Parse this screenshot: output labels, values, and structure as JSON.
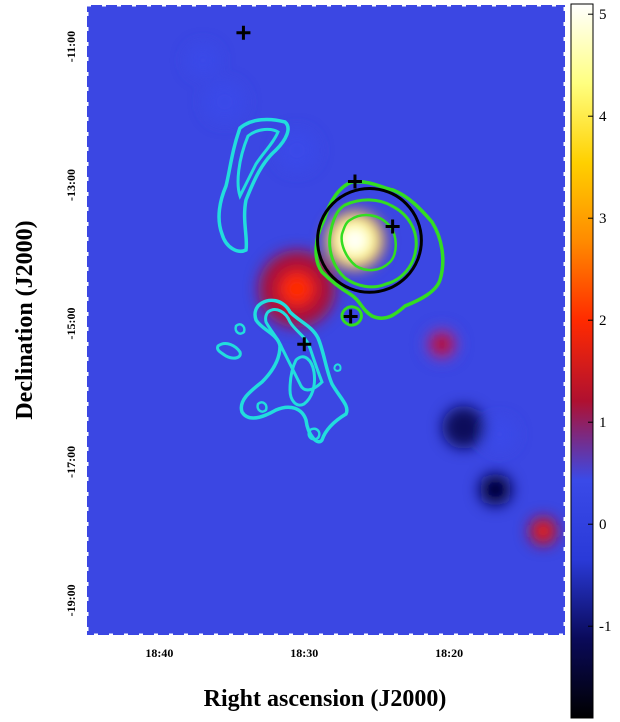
{
  "chart_data": {
    "type": "heatmap",
    "title": "",
    "xlabel": "Right ascension (J2000)",
    "ylabel": "Declination (J2000)",
    "x_ticks": [
      "18:40",
      "18:30",
      "18:20"
    ],
    "y_ticks": [
      "-11:00",
      "-13:00",
      "-15:00",
      "-17:00",
      "-19:00"
    ],
    "xlim": [
      "18:45",
      "18:12"
    ],
    "ylim": [
      -19.5,
      -10.4
    ],
    "colorbar": {
      "ticks": [
        -1,
        0,
        1,
        2,
        3,
        4,
        5
      ],
      "range": [
        -1.9,
        5.1
      ],
      "colormap": [
        "#000000",
        "#0a0a5a",
        "#2a3ad8",
        "#3a4ae8",
        "#b01030",
        "#ff2a00",
        "#ff8a00",
        "#ffd000",
        "#ffff80",
        "#ffffff"
      ]
    },
    "sources": [
      {
        "ra": "18:26.5",
        "dec": -13.8,
        "sigma": 5.0,
        "size_deg": 0.7
      },
      {
        "ra": "18:30.5",
        "dec": -14.5,
        "sigma": 1.9,
        "size_deg": 0.9
      },
      {
        "ra": "18:16.5",
        "dec": -16.6,
        "sigma": 0.8,
        "size_deg": 0.4
      },
      {
        "ra": "18:13.5",
        "dec": -18.0,
        "sigma": 1.6,
        "size_deg": 0.3
      },
      {
        "ra": "18:20.5",
        "dec": -15.3,
        "sigma": 1.3,
        "size_deg": 0.4
      },
      {
        "ra": "18:19.0",
        "dec": -16.5,
        "sigma": -1.5,
        "size_deg": 0.5
      },
      {
        "ra": "18:16.8",
        "dec": -17.4,
        "sigma": -1.8,
        "size_deg": 0.4
      },
      {
        "ra": "18:35.5",
        "dec": -11.8,
        "sigma": 0.5,
        "size_deg": 0.5
      },
      {
        "ra": "18:37.0",
        "dec": -11.2,
        "sigma": 0.6,
        "size_deg": 0.4
      },
      {
        "ra": "18:30.5",
        "dec": -12.5,
        "sigma": 0.4,
        "size_deg": 0.5
      }
    ],
    "circle": {
      "ra": "18:25.5",
      "dec": -13.8,
      "radius_deg": 0.75,
      "color": "#000000"
    },
    "markers": [
      {
        "ra": "18:34.2",
        "dec": -10.8
      },
      {
        "ra": "18:26.5",
        "dec": -12.95
      },
      {
        "ra": "18:23.9",
        "dec": -13.6
      },
      {
        "ra": "18:26.8",
        "dec": -14.9
      },
      {
        "ra": "18:30.0",
        "dec": -15.3
      }
    ],
    "contour_colors": {
      "green": "#33dd22",
      "cyan": "#22dddd"
    }
  }
}
